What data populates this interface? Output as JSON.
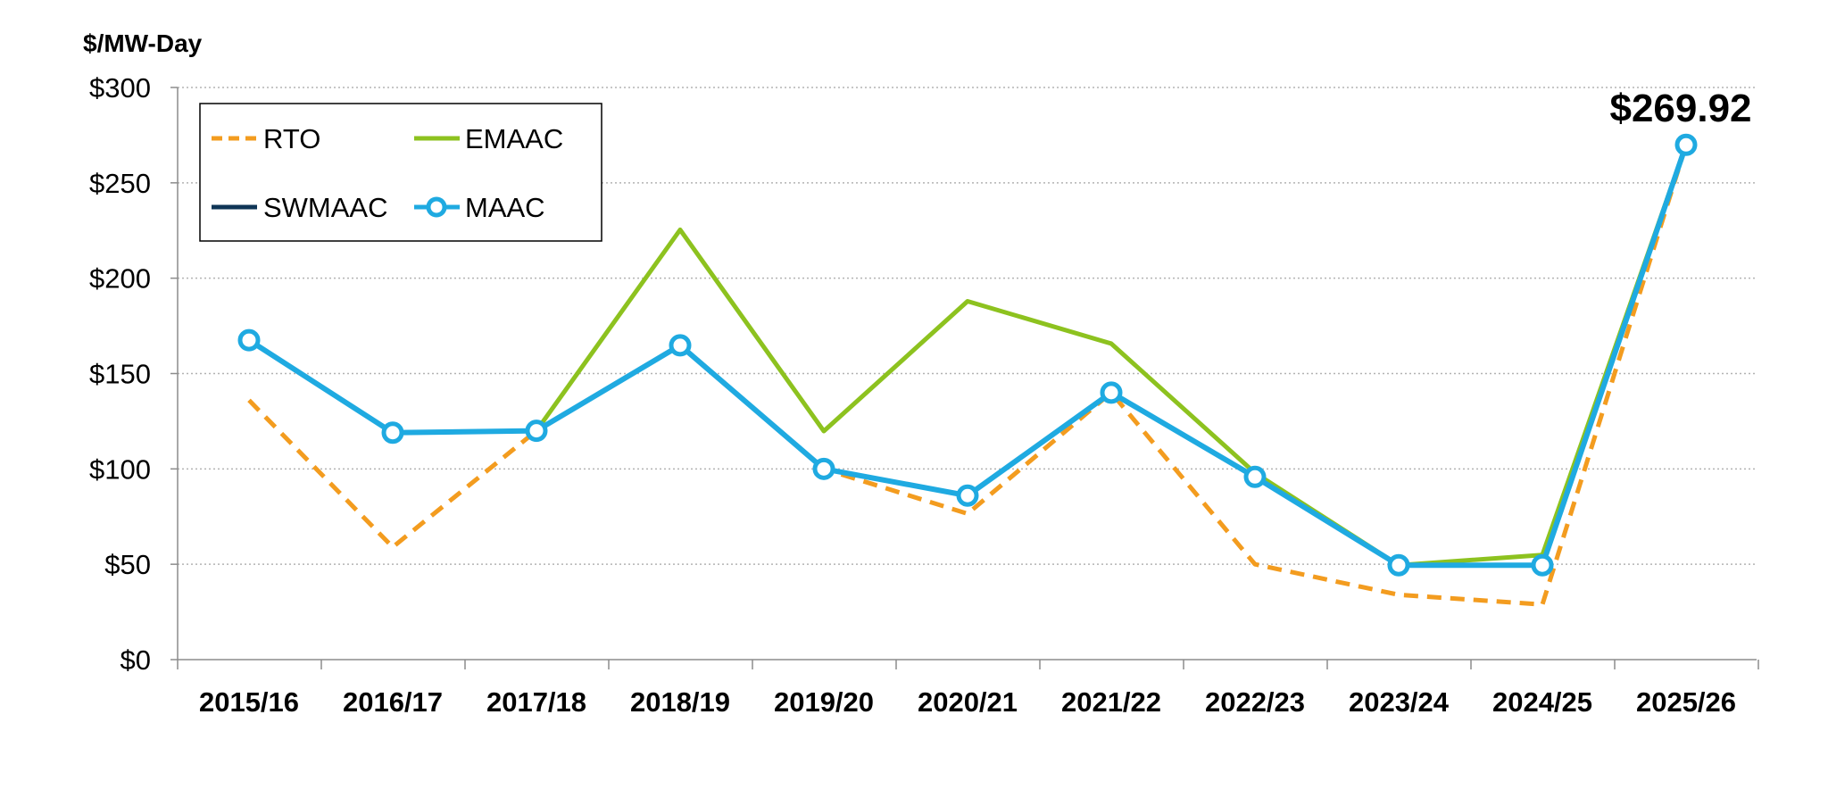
{
  "chart_data": {
    "type": "line",
    "ylabel": "$/MW-Day",
    "ylim": [
      0,
      300
    ],
    "yticks": [
      "$0",
      "$50",
      "$100",
      "$150",
      "$200",
      "$250",
      "$300"
    ],
    "ytick_values": [
      0,
      50,
      100,
      150,
      200,
      250,
      300
    ],
    "categories": [
      "2015/16",
      "2016/17",
      "2017/18",
      "2018/19",
      "2019/20",
      "2020/21",
      "2021/22",
      "2022/23",
      "2023/24",
      "2024/25",
      "2025/26"
    ],
    "grid": "horizontal dotted",
    "legend_position": "top-left",
    "annotation": {
      "text": "$269.92",
      "category": "2025/26",
      "value": 269.92
    },
    "series": [
      {
        "name": "RTO",
        "color": "#F39C1F",
        "style": "dashed",
        "values": [
          136,
          59,
          120,
          165,
          100,
          76.5,
          140,
          50,
          34,
          28.9,
          269.92
        ]
      },
      {
        "name": "EMAAC",
        "color": "#8DC21F",
        "style": "solid",
        "values": [
          167.5,
          119,
          120,
          225.4,
          119.8,
          187.9,
          165.7,
          97.9,
          49.5,
          54.9,
          269.92
        ]
      },
      {
        "name": "SWMAAC",
        "color": "#0F3556",
        "style": "solid",
        "values": [
          167.5,
          119,
          120,
          164.8,
          100,
          86,
          140,
          95.8,
          49.5,
          49.5,
          269.92
        ]
      },
      {
        "name": "MAAC",
        "color": "#1FAAE1",
        "style": "solid-markers",
        "values": [
          167.5,
          119,
          120,
          164.8,
          100,
          86,
          140,
          95.8,
          49.5,
          49.5,
          269.92
        ]
      }
    ]
  }
}
